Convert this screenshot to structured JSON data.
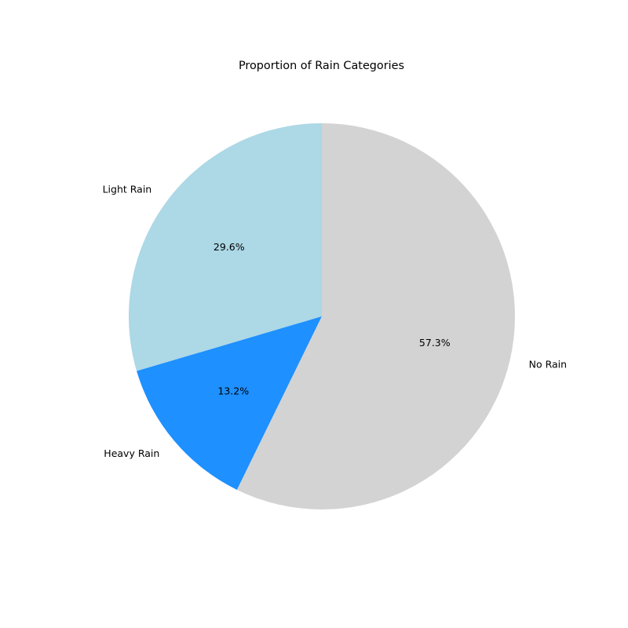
{
  "chart_data": {
    "type": "pie",
    "title": "Proportion of Rain Categories",
    "start_angle_deg": 90,
    "direction": "counterclockwise",
    "slices": [
      {
        "label": "Light Rain",
        "value": 29.6,
        "pct_label": "29.6%",
        "color": "#add8e6"
      },
      {
        "label": "Heavy Rain",
        "value": 13.2,
        "pct_label": "13.2%",
        "color": "#1e90ff"
      },
      {
        "label": "No Rain",
        "value": 57.3,
        "pct_label": "57.3%",
        "color": "#d3d3d3"
      }
    ]
  }
}
